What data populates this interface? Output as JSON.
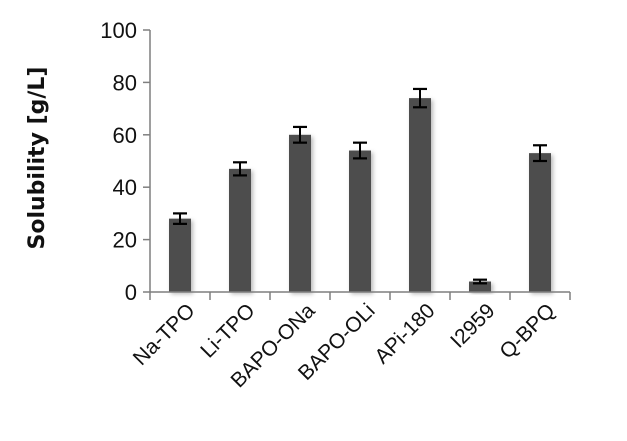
{
  "chart_data": {
    "type": "bar",
    "title": "",
    "xlabel": "",
    "ylabel": "Solubility [g/L]",
    "ylim": [
      0,
      100
    ],
    "yticks": [
      0,
      20,
      40,
      60,
      80,
      100
    ],
    "grid": false,
    "legend": "none",
    "categories": [
      "Na-TPO",
      "Li-TPO",
      "BAPO-ONa",
      "BAPO-OLi",
      "APi-180",
      "I2959",
      "Q-BPQ"
    ],
    "values": [
      28,
      47,
      60,
      54,
      74,
      4,
      53
    ],
    "errors": [
      2,
      2.5,
      3,
      3,
      3.5,
      0.7,
      3
    ],
    "bar_color": "#4d4d4d"
  }
}
